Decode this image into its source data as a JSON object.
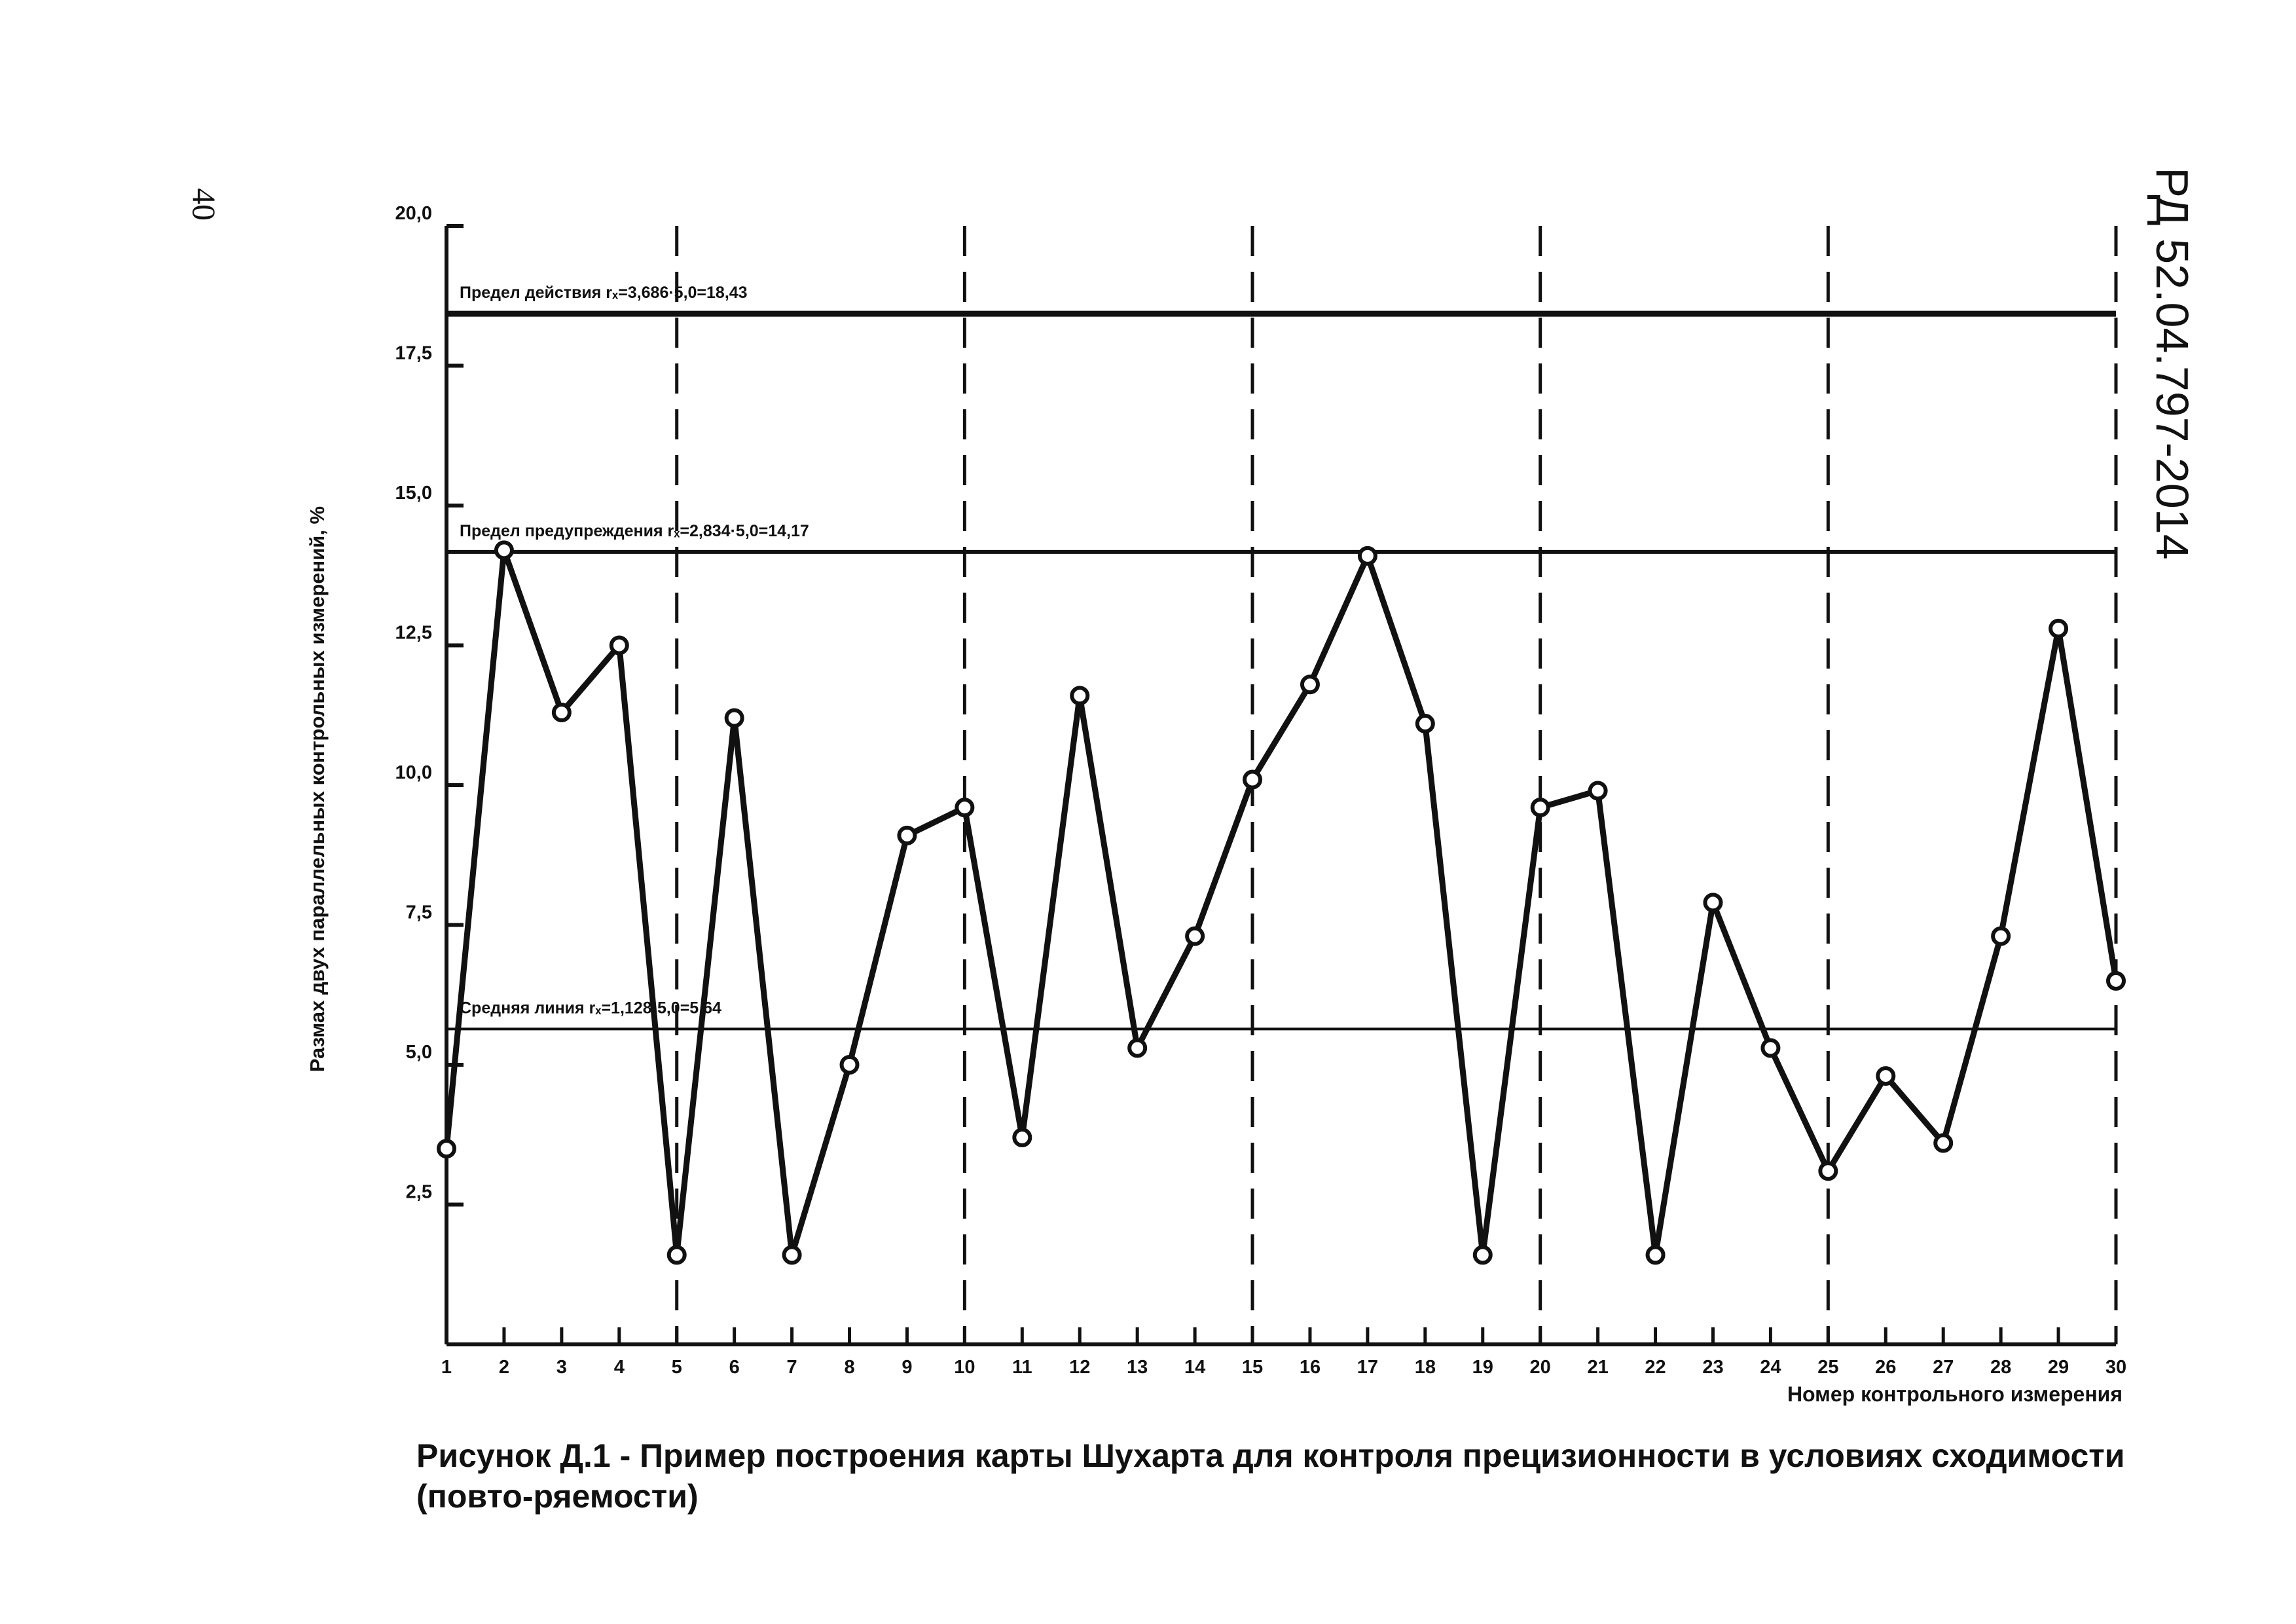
{
  "page": {
    "page_number": "40",
    "document_code": "РД 52.04.797-2014",
    "caption": "Рисунок Д.1 - Пример построения  карты Шухарта для контроля прецизионности в условиях сходимости (повто-ряемости)"
  },
  "chart_data": {
    "type": "line",
    "title": "",
    "xlabel": "Номер контрольного измерения",
    "ylabel": "Размах двух параллельных контрольных измерений, %",
    "x": [
      1,
      2,
      3,
      4,
      5,
      6,
      7,
      8,
      9,
      10,
      11,
      12,
      13,
      14,
      15,
      16,
      17,
      18,
      19,
      20,
      21,
      22,
      23,
      24,
      25,
      26,
      27,
      28,
      29,
      30
    ],
    "series": [
      {
        "values": [
          3.5,
          14.2,
          11.3,
          12.5,
          1.6,
          11.2,
          1.6,
          5.0,
          9.1,
          9.6,
          3.7,
          11.6,
          5.3,
          7.3,
          10.1,
          11.8,
          14.1,
          11.1,
          1.6,
          9.6,
          9.9,
          1.6,
          7.9,
          5.3,
          3.1,
          4.8,
          3.6,
          7.3,
          12.8,
          6.5
        ],
        "color": "#111111"
      }
    ],
    "xlim": [
      1,
      30
    ],
    "ylim": [
      0,
      20
    ],
    "y_ticks": [
      "2,5",
      "5,0",
      "7,5",
      "10,0",
      "12,5",
      "15,0",
      "17,5",
      "20,0"
    ],
    "x_ticks": [
      "1",
      "2",
      "3",
      "4",
      "5",
      "6",
      "7",
      "8",
      "9",
      "10",
      "11",
      "12",
      "13",
      "14",
      "15",
      "16",
      "17",
      "18",
      "19",
      "20",
      "21",
      "22",
      "23",
      "24",
      "25",
      "26",
      "27",
      "28",
      "29",
      "30"
    ],
    "grid": false,
    "dashed_vertical_lines_at": [
      5,
      10,
      15,
      20,
      25,
      30
    ],
    "control_lines": [
      {
        "value": 18.43,
        "label": "Предел действия rₓ=3,686·5,0=18,43",
        "line": "heavy"
      },
      {
        "value": 14.17,
        "label": "Предел предупреждения rₓ=2,834·5,0=14,17",
        "line": "medium"
      },
      {
        "value": 5.64,
        "label": "Средняя линия rₓ=1,128·5,0=5,64",
        "line": "thin"
      }
    ]
  }
}
